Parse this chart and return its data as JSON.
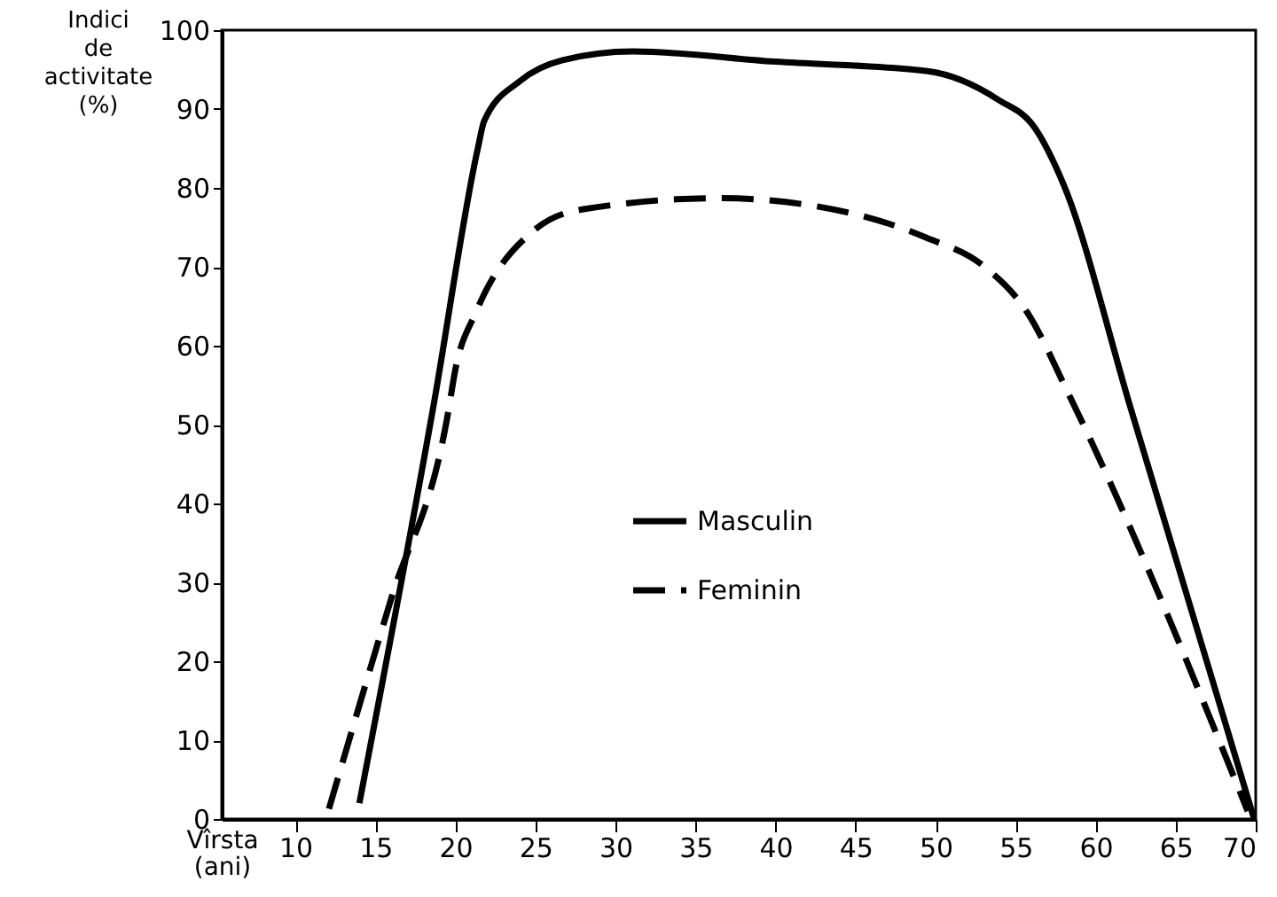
{
  "chart_data": {
    "type": "line",
    "xlabel": "Vîrsta (ani)",
    "ylabel": "Indici de activitate (%)",
    "xlim": [
      5.4,
      70
    ],
    "xticks": [
      10,
      15,
      20,
      25,
      30,
      35,
      40,
      45,
      50,
      55,
      60,
      65,
      70
    ],
    "ylim": [
      0,
      100
    ],
    "yticks": [
      0,
      10,
      20,
      30,
      40,
      50,
      60,
      70,
      80,
      90,
      100
    ],
    "grid": false,
    "legend": "left",
    "marker": "none",
    "series": [
      {
        "name": "Masculin",
        "color": "#000000",
        "line_style": "solid",
        "x": [
          14,
          18.6,
          21.4,
          21.8,
          24,
          26.7,
          31.1,
          40,
          49.5,
          53.9,
          56.2,
          58,
          62.2,
          69.9
        ],
        "values": [
          2,
          52,
          85,
          88.5,
          93.5,
          96.2,
          97.3,
          96,
          94.8,
          91.2,
          87.6,
          80.4,
          52,
          0
        ]
      },
      {
        "name": "Feminin",
        "color": "#000000",
        "line_style": "dashed",
        "x": [
          12.1,
          16,
          19.5,
          20,
          21.3,
          24.9,
          28,
          36.5,
          44.5,
          49.4,
          53,
          55.7,
          58.4,
          69.5
        ],
        "values": [
          1.3,
          28,
          51,
          57,
          64.3,
          74.6,
          77.3,
          78.7,
          76.9,
          73.7,
          70.1,
          64.3,
          53.5,
          1
        ]
      }
    ]
  }
}
